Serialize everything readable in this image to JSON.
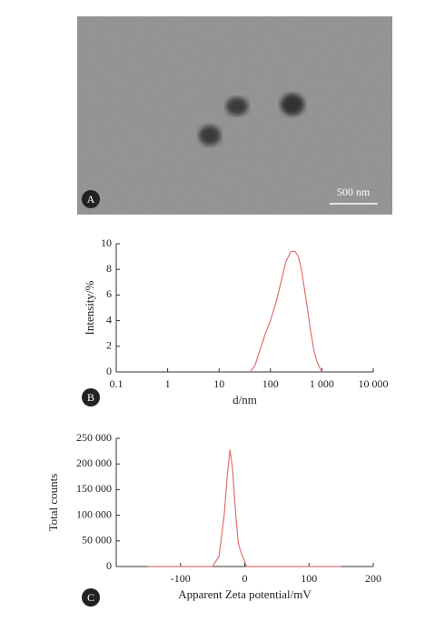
{
  "image": {
    "label": "A",
    "scale_bar": "500 nm"
  },
  "chart_data": [
    {
      "type": "line",
      "panel_label": "B",
      "ylabel": "Intensity/%",
      "xlabel": "d/nm",
      "xscale": "log",
      "xlim": [
        0.1,
        10000
      ],
      "xticks": [
        0.1,
        1,
        10,
        100,
        {
          "value": 1000,
          "label": "1 000"
        },
        {
          "value": 10000,
          "label": "10 000"
        }
      ],
      "ylim": [
        0,
        10
      ],
      "yticks": [
        0,
        2,
        4,
        6,
        8,
        10
      ],
      "series": [
        {
          "color": "#e07070",
          "x": [
            40,
            50,
            60,
            80,
            100,
            130,
            160,
            200,
            250,
            300,
            350,
            400,
            500,
            600,
            700,
            800,
            1000
          ],
          "values": [
            0,
            0.5,
            1.5,
            3,
            4,
            5.5,
            7,
            8.6,
            9.4,
            9.4,
            9,
            8,
            5.5,
            3.3,
            1.7,
            0.8,
            0
          ]
        }
      ]
    },
    {
      "type": "line",
      "panel_label": "C",
      "ylabel": "Total counts",
      "xlabel": "Apparent Zeta potential/mV",
      "xscale": "linear",
      "xlim": [
        -200,
        200
      ],
      "xticks": [
        -100,
        0,
        100,
        200
      ],
      "ylim": [
        0,
        250000
      ],
      "yticks": [
        0,
        {
          "value": 50000,
          "label": "50 000"
        },
        {
          "value": 100000,
          "label": "100 000"
        },
        {
          "value": 150000,
          "label": "150 000"
        },
        {
          "value": 200000,
          "label": "200 000"
        },
        {
          "value": 250000,
          "label": "250 000"
        }
      ],
      "series": [
        {
          "color": "#e07070",
          "x": [
            -150,
            -50,
            -40,
            -32,
            -27,
            -23,
            -19,
            -14,
            -10,
            -5,
            3,
            10,
            150
          ],
          "values": [
            0,
            0,
            20000,
            100000,
            180000,
            228000,
            190000,
            100000,
            45000,
            25000,
            0,
            0,
            0
          ]
        }
      ]
    }
  ]
}
